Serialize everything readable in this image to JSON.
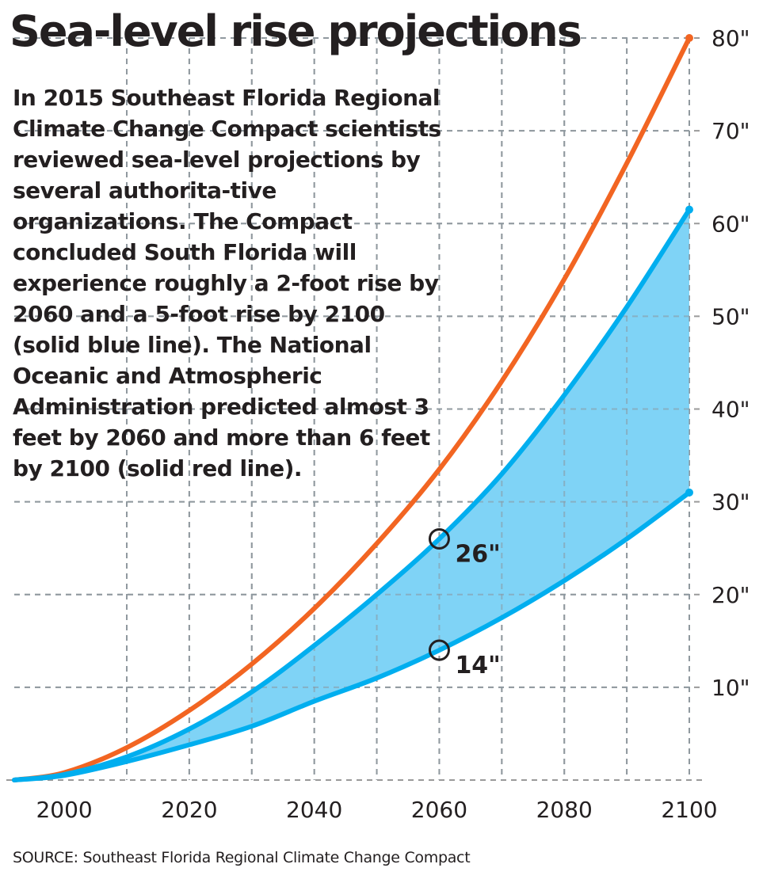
{
  "title": "Sea-level rise projections",
  "description": "In 2015 Southeast Florida Regional Climate Change Compact scientists reviewed sea-level projections by several authorita-tive organizations. The Compact concluded South Florida will experience roughly a 2-foot rise by 2060 and a 5-foot rise by 2100 (solid blue line). The National Oceanic and Atmospheric Administration predicted almost 3 feet by 2060 and more than 6 feet by 2100 (solid red line).",
  "source": "SOURCE: Southeast Florida Regional Climate Change Compact",
  "colors": {
    "noaa_line": "#f26522",
    "compact_line": "#00aeef",
    "band_fill": "#7fd3f6",
    "grid": "#9a9a9a",
    "text": "#231f20"
  },
  "chart_data": {
    "type": "area",
    "x_domain": [
      1992,
      2100
    ],
    "ylim": [
      0,
      80
    ],
    "y_unit": "inches",
    "grid": true,
    "x_ticks": [
      2000,
      2020,
      2040,
      2060,
      2080,
      2100
    ],
    "x_tick_labels": [
      "2000",
      "2020",
      "2040",
      "2060",
      "2080",
      "2100"
    ],
    "y_ticks": [
      10,
      20,
      30,
      40,
      50,
      60,
      70,
      80
    ],
    "y_tick_labels": [
      "10\"",
      "20\"",
      "30\"",
      "40\"",
      "50\"",
      "60\"",
      "70\"",
      "80\""
    ],
    "series": [
      {
        "key": "noaa",
        "x": [
          1992,
          2000,
          2010,
          2020,
          2030,
          2040,
          2050,
          2060,
          2070,
          2080,
          2090,
          2100
        ],
        "values": [
          0,
          0.8,
          3.5,
          7.5,
          12.5,
          18.5,
          25.5,
          33.5,
          43,
          54,
          66.5,
          80
        ]
      },
      {
        "key": "compact_upper",
        "x": [
          1992,
          2000,
          2010,
          2020,
          2030,
          2040,
          2050,
          2060,
          2070,
          2080,
          2090,
          2100
        ],
        "values": [
          0,
          0.6,
          2.5,
          5.5,
          9.5,
          14.5,
          20,
          26,
          33,
          41.5,
          51,
          61.5
        ]
      },
      {
        "key": "compact_lower",
        "x": [
          1992,
          2000,
          2010,
          2020,
          2030,
          2040,
          2050,
          2060,
          2070,
          2080,
          2090,
          2100
        ],
        "values": [
          0,
          0.5,
          2,
          3.8,
          5.8,
          8.5,
          11,
          14,
          17.5,
          21.5,
          26,
          31
        ]
      }
    ],
    "annotations": [
      {
        "x": 2060,
        "y": 26,
        "label": "26\""
      },
      {
        "x": 2060,
        "y": 14,
        "label": "14\""
      }
    ]
  }
}
